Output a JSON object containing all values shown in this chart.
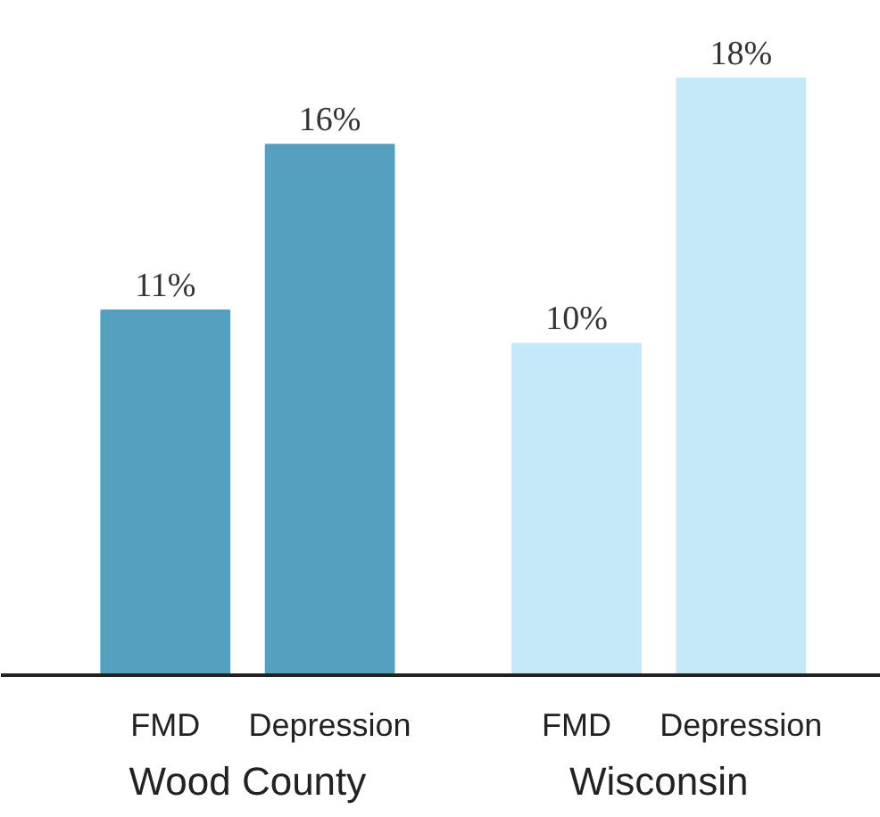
{
  "chart_data": {
    "type": "bar",
    "categories": [
      "FMD",
      "Depression",
      "FMD",
      "Depression"
    ],
    "values": [
      11,
      16,
      10,
      18
    ],
    "colors": [
      "#559fbf",
      "#559fbf",
      "#c6e9f9",
      "#c6e9f9"
    ],
    "value_labels": [
      "11%",
      "16%",
      "10%",
      "18%"
    ],
    "annotations": [
      "Wood County",
      "Wisconsin"
    ],
    "grid": false
  }
}
